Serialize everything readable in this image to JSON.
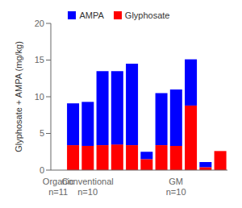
{
  "chart_data": {
    "type": "bar",
    "stacked": true,
    "ylabel": "Glyphosate + AMPA (mg/kg)",
    "categories": [
      "Organic\nn=11",
      null,
      "Conventional\nn=10",
      null,
      null,
      null,
      null,
      null,
      "GM\nn=10",
      null,
      null,
      null
    ],
    "series": [
      {
        "name": "AMPA",
        "color": "#0000FF",
        "values": [
          null,
          5.7,
          6.0,
          10.1,
          10.0,
          11.1,
          1.0,
          7.1,
          7.7,
          6.3,
          0.7,
          0.0
        ]
      },
      {
        "name": "Glyphosate",
        "color": "#FF0000",
        "values": [
          null,
          3.4,
          3.3,
          3.4,
          3.5,
          3.4,
          1.5,
          3.4,
          3.3,
          8.8,
          0.4,
          2.6
        ]
      }
    ],
    "ylim": [
      0,
      20
    ],
    "yticks": [
      0,
      5,
      10,
      15,
      20
    ],
    "grid": false,
    "legend": "top"
  }
}
